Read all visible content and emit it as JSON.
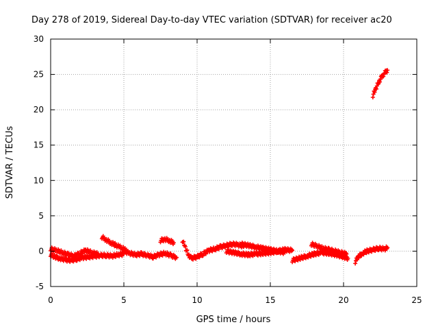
{
  "chart_data": {
    "type": "scatter",
    "title": "Day 278 of 2019, Sidereal Day-to-day VTEC variation (SDTVAR) for receiver ac20",
    "xlabel": "GPS time / hours",
    "ylabel": "SDTVAR / TECUs",
    "xlim": [
      0,
      25
    ],
    "ylim": [
      -5,
      30
    ],
    "xticks": [
      "0",
      "5",
      "10",
      "15",
      "20",
      "25"
    ],
    "yticks": [
      "-5",
      "0",
      "5",
      "10",
      "15",
      "20",
      "25",
      "30"
    ],
    "grid": true,
    "marker": "plus",
    "color": "#ff0000",
    "series": [
      {
        "name": "ac20",
        "segments": [
          {
            "x": [
              0.0,
              0.3,
              0.6,
              1.0,
              1.4,
              1.8,
              2.2,
              2.6,
              3.0,
              3.4,
              3.8,
              4.2,
              4.6,
              5.0
            ],
            "y": [
              -0.5,
              -0.8,
              -1.0,
              -1.2,
              -1.3,
              -1.1,
              -0.9,
              -0.8,
              -0.7,
              -0.6,
              -0.6,
              -0.7,
              -0.5,
              -0.4
            ]
          },
          {
            "x": [
              0.0,
              0.4,
              0.8,
              1.2,
              1.6,
              2.0,
              2.4,
              2.8,
              3.2
            ],
            "y": [
              0.3,
              0.1,
              -0.2,
              -0.5,
              -0.7,
              -0.3,
              0.1,
              -0.2,
              -0.4
            ]
          },
          {
            "x": [
              3.5,
              3.8,
              4.1,
              4.4,
              4.7,
              5.0,
              5.2
            ],
            "y": [
              2.0,
              1.6,
              1.2,
              0.9,
              0.6,
              0.3,
              0.0
            ]
          },
          {
            "x": [
              5.0,
              5.4,
              5.8,
              6.2,
              6.6,
              7.0,
              7.4,
              7.8,
              8.2,
              8.6
            ],
            "y": [
              0.0,
              -0.3,
              -0.5,
              -0.4,
              -0.6,
              -0.8,
              -0.5,
              -0.3,
              -0.6,
              -0.9
            ]
          },
          {
            "x": [
              7.5,
              7.8,
              8.1,
              8.4
            ],
            "y": [
              1.5,
              1.7,
              1.5,
              1.2
            ]
          },
          {
            "x": [
              9.0,
              9.2,
              9.4,
              9.6,
              10.0,
              10.4,
              10.8,
              11.2,
              11.6,
              12.0,
              12.4,
              12.8,
              13.2
            ],
            "y": [
              1.5,
              0.5,
              -0.5,
              -1.0,
              -0.8,
              -0.4,
              0.1,
              0.3,
              0.6,
              0.8,
              1.0,
              0.9,
              0.7
            ]
          },
          {
            "x": [
              12.0,
              12.5,
              13.0,
              13.5,
              14.0,
              14.5,
              15.0,
              15.5,
              16.0,
              16.5
            ],
            "y": [
              0.0,
              -0.2,
              -0.4,
              -0.5,
              -0.4,
              -0.3,
              -0.2,
              0.0,
              0.2,
              0.1
            ]
          },
          {
            "x": [
              13.0,
              13.5,
              14.0,
              14.5,
              15.0,
              15.5,
              16.0
            ],
            "y": [
              1.0,
              0.8,
              0.6,
              0.4,
              0.2,
              0.0,
              -0.2
            ]
          },
          {
            "x": [
              16.5,
              17.0,
              17.5,
              18.0,
              18.5,
              19.0,
              19.5,
              20.0,
              20.3
            ],
            "y": [
              -1.3,
              -1.0,
              -0.7,
              -0.4,
              -0.2,
              -0.3,
              -0.5,
              -0.8,
              -1.0
            ]
          },
          {
            "x": [
              17.8,
              18.2,
              18.6,
              19.0,
              19.4,
              19.8,
              20.2
            ],
            "y": [
              1.0,
              0.7,
              0.4,
              0.2,
              0.0,
              -0.2,
              -0.4
            ]
          },
          {
            "x": [
              20.8,
              21.0,
              21.3,
              21.6,
              22.0,
              22.4,
              22.8,
              23.0
            ],
            "y": [
              -1.5,
              -0.8,
              -0.3,
              0.0,
              0.2,
              0.4,
              0.3,
              0.5
            ]
          },
          {
            "x": [
              22.0,
              22.2,
              22.4,
              22.6,
              22.8,
              23.0
            ],
            "y": [
              22.0,
              23.0,
              23.9,
              24.6,
              25.2,
              25.6
            ]
          }
        ]
      }
    ]
  }
}
